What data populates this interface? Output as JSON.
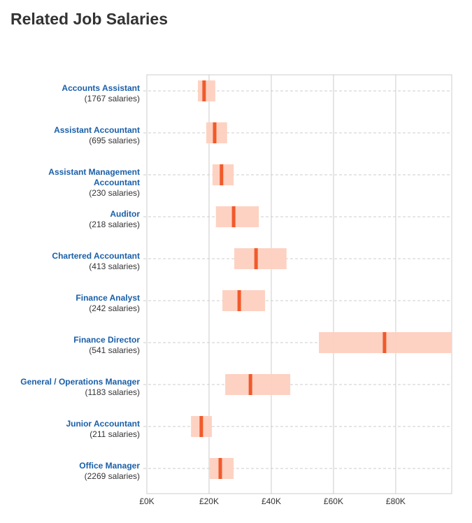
{
  "chart_data": {
    "type": "range",
    "title": "Related Job Salaries",
    "categories": [
      "Accounts Assistant",
      "Assistant Accountant",
      "Assistant Management Accountant",
      "Auditor",
      "Chartered Accountant",
      "Finance Analyst",
      "Finance Director",
      "General / Operations Manager",
      "Junior Accountant",
      "Office Manager"
    ],
    "salary_counts": [
      "(1767 salaries)",
      "(695 salaries)",
      "(230 salaries)",
      "(218 salaries)",
      "(413 salaries)",
      "(242 salaries)",
      "(541 salaries)",
      "(1183 salaries)",
      "(211 salaries)",
      "(2269 salaries)"
    ],
    "low": [
      16.4,
      19.1,
      21.1,
      22.2,
      28.1,
      24.3,
      55.3,
      25.2,
      14.2,
      20.2
    ],
    "high": [
      22.0,
      25.8,
      27.9,
      36.0,
      44.9,
      38.0,
      98,
      46.1,
      20.9,
      27.9
    ],
    "median": [
      18.4,
      21.8,
      24.0,
      27.9,
      35.1,
      29.7,
      76.4,
      33.3,
      17.5,
      23.6
    ],
    "range_color": "#fdd0c0",
    "median_color": "#f15a2b",
    "xlim": [
      0,
      98
    ],
    "xticks": [
      {
        "value": 0,
        "label": "£0K"
      },
      {
        "value": 20,
        "label": "£20K"
      },
      {
        "value": 40,
        "label": "£40K"
      },
      {
        "value": 60,
        "label": "£60K"
      },
      {
        "value": 80,
        "label": "£80K"
      }
    ],
    "grid": true
  }
}
